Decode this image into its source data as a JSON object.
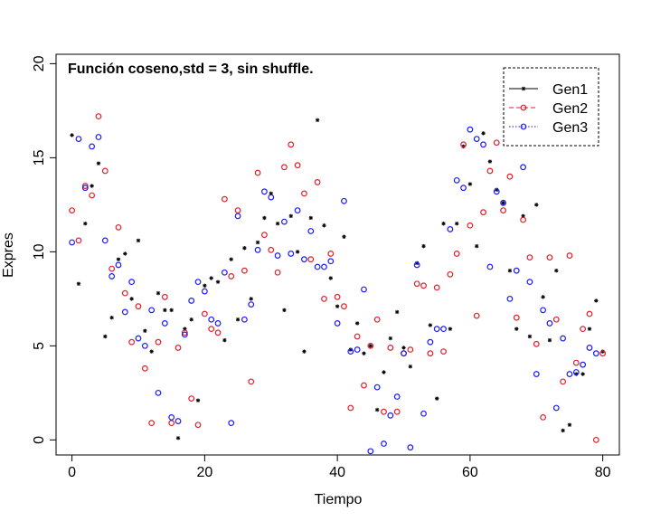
{
  "chart_data": {
    "type": "scatter",
    "title": "Función coseno,std = 3, sin shuffle.",
    "xlabel": "Tiempo",
    "ylabel": "Expres",
    "xlim": [
      -2.4,
      82.5
    ],
    "ylim": [
      -0.8,
      20.5
    ],
    "xticks": [
      0,
      20,
      40,
      60,
      80
    ],
    "yticks": [
      0,
      5,
      10,
      15,
      20
    ],
    "grid": false,
    "legend_position": "top-right",
    "x": [
      0,
      1,
      2,
      3,
      4,
      5,
      6,
      7,
      8,
      9,
      10,
      11,
      12,
      13,
      14,
      15,
      16,
      17,
      18,
      19,
      20,
      21,
      22,
      23,
      24,
      25,
      26,
      27,
      28,
      29,
      30,
      31,
      32,
      33,
      34,
      35,
      36,
      37,
      38,
      39,
      40,
      41,
      42,
      43,
      44,
      45,
      46,
      47,
      48,
      49,
      50,
      51,
      52,
      53,
      54,
      55,
      56,
      57,
      58,
      59,
      60,
      61,
      62,
      63,
      64,
      65,
      66,
      67,
      68,
      69,
      70,
      71,
      72,
      73,
      74,
      75,
      76,
      77,
      78,
      79,
      80
    ],
    "series": [
      {
        "name": "Gen1",
        "marker": "asterisk",
        "color": "#000000",
        "line_style": "solid",
        "values": [
          16.2,
          8.3,
          11.5,
          13.5,
          14.7,
          5.5,
          6.5,
          9.6,
          9.9,
          7.5,
          10.6,
          5.8,
          4.7,
          7.8,
          6.9,
          6.9,
          0.1,
          5.9,
          6.4,
          2.1,
          8.2,
          8.6,
          8.4,
          5.3,
          9.6,
          6.4,
          10.2,
          7.5,
          10.5,
          11.8,
          13.1,
          11.5,
          6.9,
          11.9,
          10.0,
          4.7,
          11.8,
          17.0,
          11.4,
          8.6,
          7.1,
          10.8,
          4.8,
          6.2,
          4.6,
          5.0,
          1.6,
          3.6,
          5.4,
          6.8,
          4.9,
          3.9,
          9.4,
          10.3,
          6.1,
          2.2,
          11.5,
          5.9,
          11.5,
          15.6,
          13.6,
          10.3,
          16.3,
          14.8,
          13.3,
          12.6,
          9.0,
          5.9,
          11.9,
          5.5,
          12.5,
          7.6,
          5.3,
          9.0,
          0.5,
          0.8,
          3.5,
          3.5,
          5.9,
          7.4,
          4.7
        ]
      },
      {
        "name": "Gen2",
        "marker": "circle",
        "color": "#e0202a",
        "line_style": "dashed",
        "values": [
          12.2,
          10.6,
          13.5,
          13.0,
          17.2,
          14.3,
          9.1,
          11.3,
          7.8,
          5.2,
          7.1,
          3.8,
          0.9,
          5.2,
          7.6,
          0.9,
          4.9,
          5.7,
          2.2,
          0.8,
          6.7,
          5.9,
          5.7,
          12.8,
          8.7,
          12.2,
          9.0,
          3.1,
          14.2,
          10.9,
          10.1,
          8.9,
          14.5,
          15.7,
          14.6,
          13.1,
          9.6,
          13.7,
          7.5,
          9.9,
          7.6,
          7.1,
          1.7,
          5.5,
          2.9,
          5.0,
          6.4,
          1.5,
          4.9,
          1.5,
          4.6,
          4.8,
          8.3,
          8.2,
          4.6,
          8.1,
          4.7,
          8.8,
          9.9,
          15.7,
          11.4,
          6.6,
          12.1,
          14.3,
          15.8,
          12.2,
          14.0,
          6.5,
          11.7,
          9.7,
          5.1,
          1.2,
          9.7,
          6.4,
          3.1,
          9.8,
          4.1,
          5.9,
          6.7,
          0.0,
          4.6
        ]
      },
      {
        "name": "Gen3",
        "marker": "circle",
        "color": "#1a1aff",
        "line_style": "dotted",
        "values": [
          10.5,
          16.0,
          13.4,
          15.6,
          16.1,
          10.6,
          8.7,
          9.3,
          6.8,
          8.4,
          5.4,
          5.0,
          6.9,
          2.5,
          6.2,
          1.2,
          1.0,
          5.6,
          7.4,
          8.4,
          7.9,
          6.4,
          6.2,
          8.9,
          0.9,
          11.9,
          6.4,
          7.2,
          10.1,
          13.2,
          12.9,
          9.8,
          11.6,
          9.9,
          12.2,
          9.6,
          11.1,
          9.2,
          9.2,
          9.5,
          6.2,
          12.7,
          4.7,
          4.8,
          8.0,
          -0.6,
          2.8,
          -0.2,
          1.3,
          2.3,
          4.6,
          -0.4,
          9.3,
          1.4,
          5.2,
          5.9,
          5.9,
          11.2,
          13.8,
          13.4,
          16.5,
          16.0,
          15.7,
          9.2,
          13.2,
          12.6,
          7.5,
          9.0,
          14.5,
          8.4,
          3.5,
          6.9,
          6.2,
          1.7,
          5.4,
          3.5,
          3.6,
          4.0,
          4.9,
          4.6,
          -0.9
        ]
      }
    ]
  }
}
